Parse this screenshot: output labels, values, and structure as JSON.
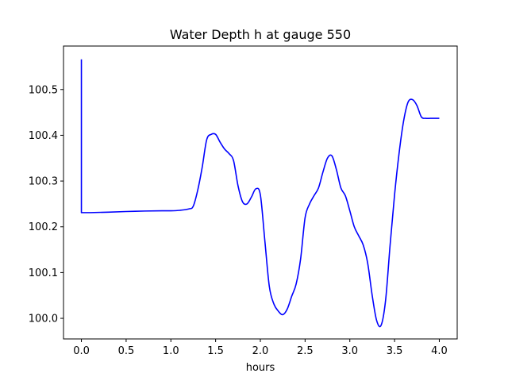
{
  "chart_data": {
    "type": "line",
    "title": "Water Depth h at gauge 550",
    "xlabel": "hours",
    "ylabel": "",
    "xlim": [
      -0.2,
      4.2
    ],
    "ylim": [
      99.955,
      100.595
    ],
    "xticks": [
      0.0,
      0.5,
      1.0,
      1.5,
      2.0,
      2.5,
      3.0,
      3.5,
      4.0
    ],
    "xtick_labels": [
      "0.0",
      "0.5",
      "1.0",
      "1.5",
      "2.0",
      "2.5",
      "3.0",
      "3.5",
      "4.0"
    ],
    "yticks": [
      100.0,
      100.1,
      100.2,
      100.3,
      100.4,
      100.5
    ],
    "ytick_labels": [
      "100.0",
      "100.1",
      "100.2",
      "100.3",
      "100.4",
      "100.5"
    ],
    "grid": false,
    "line_color": "#0000ff",
    "series": [
      {
        "x": [
          0.0,
          0.0,
          0.0,
          0.1,
          0.3,
          0.6,
          0.9,
          1.0,
          1.1,
          1.2,
          1.25,
          1.3,
          1.35,
          1.4,
          1.45,
          1.5,
          1.55,
          1.6,
          1.65,
          1.7,
          1.75,
          1.8,
          1.85,
          1.9,
          1.95,
          2.0,
          2.05,
          2.1,
          2.15,
          2.2,
          2.25,
          2.3,
          2.35,
          2.4,
          2.45,
          2.5,
          2.55,
          2.6,
          2.65,
          2.7,
          2.75,
          2.8,
          2.85,
          2.9,
          2.95,
          3.0,
          3.05,
          3.1,
          3.15,
          3.2,
          3.25,
          3.3,
          3.35,
          3.4,
          3.45,
          3.5,
          3.55,
          3.6,
          3.65,
          3.7,
          3.75,
          3.8,
          3.85,
          3.9,
          3.95,
          4.0
        ],
        "y": [
          100.566,
          100.4,
          100.231,
          100.231,
          100.232,
          100.234,
          100.235,
          100.235,
          100.236,
          100.239,
          100.245,
          100.28,
          100.33,
          100.39,
          100.402,
          100.402,
          100.385,
          100.37,
          100.36,
          100.345,
          100.29,
          100.255,
          100.25,
          100.265,
          100.283,
          100.27,
          100.17,
          100.07,
          100.032,
          100.016,
          100.008,
          100.02,
          100.048,
          100.075,
          100.13,
          100.22,
          100.25,
          100.268,
          100.285,
          100.32,
          100.35,
          100.355,
          100.325,
          100.285,
          100.268,
          100.235,
          100.2,
          100.18,
          100.16,
          100.12,
          100.05,
          99.995,
          99.985,
          100.04,
          100.16,
          100.27,
          100.36,
          100.43,
          100.472,
          100.478,
          100.465,
          100.44,
          100.437,
          100.437,
          100.437,
          100.437
        ]
      }
    ]
  }
}
